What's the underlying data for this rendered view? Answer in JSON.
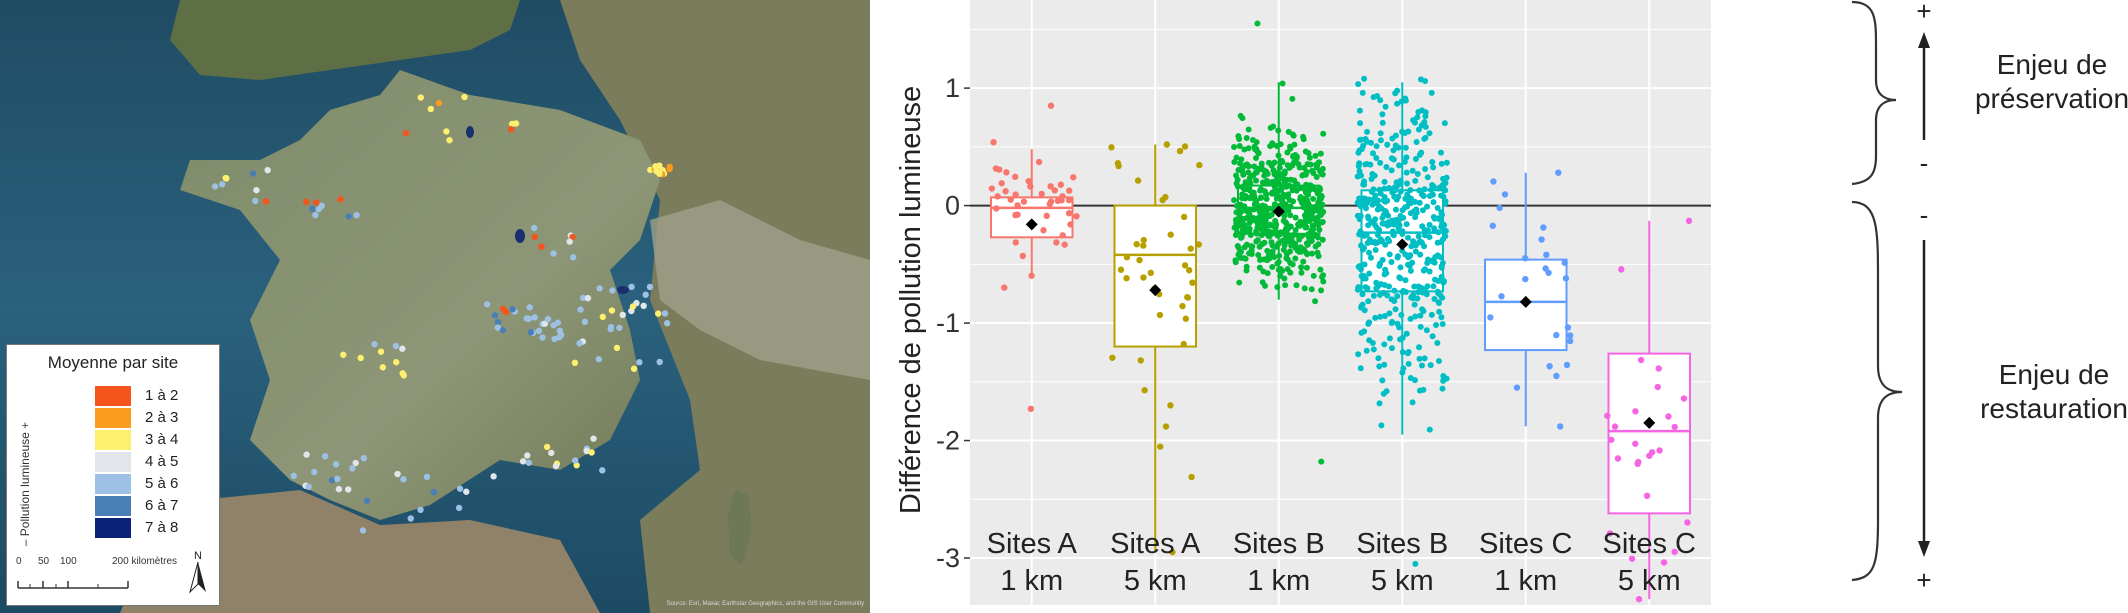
{
  "map": {
    "legend_title": "Moyenne par site",
    "legend_axis_label": "– Pollution lumineuse +",
    "legend": [
      {
        "label": "1 à 2",
        "color": "#f5541b"
      },
      {
        "label": "2 à 3",
        "color": "#fb9b20"
      },
      {
        "label": "3 à 4",
        "color": "#fdf06e"
      },
      {
        "label": "4 à 5",
        "color": "#e2e6ea"
      },
      {
        "label": "5 à 6",
        "color": "#9cc1e4"
      },
      {
        "label": "6 à 7",
        "color": "#4a7fb6"
      },
      {
        "label": "7 à 8",
        "color": "#0b2278"
      }
    ],
    "scale_ticks": [
      "0",
      "50",
      "100",
      "200 kilomètres"
    ],
    "north_label": "N",
    "attribution": "Source: Esri, Maxar, Earthstar Geographics, and the GIS User Community"
  },
  "chart_data": {
    "type": "boxplot",
    "ylabel": "Différence de pollution lumineuse",
    "ylim": [
      -3.4,
      1.75
    ],
    "yticks": [
      1,
      0,
      -1,
      -2,
      -3
    ],
    "reference_line": 0,
    "categories": [
      {
        "line1": "Sites A",
        "line2": "1 km",
        "color": "#f8766d",
        "q1": -0.27,
        "median": -0.02,
        "q3": 0.07,
        "whisker_low": -0.62,
        "whisker_high": 0.48,
        "mean": -0.16,
        "n_points": 45,
        "point_min": -1.73,
        "point_max": 0.85
      },
      {
        "line1": "Sites A",
        "line2": "5 km",
        "color": "#b79f00",
        "q1": -1.2,
        "median": -0.42,
        "q3": 0.0,
        "whisker_low": -2.95,
        "whisker_high": 0.52,
        "mean": -0.72,
        "n_points": 42,
        "point_min": -2.95,
        "point_max": 0.52
      },
      {
        "line1": "Sites B",
        "line2": "1 km",
        "color": "#00ba38",
        "q1": -0.24,
        "median": -0.02,
        "q3": 0.17,
        "whisker_low": -0.8,
        "whisker_high": 1.05,
        "mean": -0.05,
        "n_points": 540,
        "point_min": -2.18,
        "point_max": 1.55
      },
      {
        "line1": "Sites B",
        "line2": "5 km",
        "color": "#00bfc4",
        "q1": -0.73,
        "median": -0.23,
        "q3": 0.13,
        "whisker_low": -1.95,
        "whisker_high": 1.05,
        "mean": -0.33,
        "n_points": 470,
        "point_min": -3.05,
        "point_max": 1.08
      },
      {
        "line1": "Sites C",
        "line2": "1 km",
        "color": "#619cff",
        "q1": -1.23,
        "median": -0.82,
        "q3": -0.46,
        "whisker_low": -1.88,
        "whisker_high": 0.28,
        "mean": -0.82,
        "n_points": 25,
        "point_min": -1.88,
        "point_max": 0.28
      },
      {
        "line1": "Sites C",
        "line2": "5 km",
        "color": "#f564e3",
        "q1": -2.62,
        "median": -1.92,
        "q3": -1.26,
        "whisker_low": -3.35,
        "whisker_high": -0.13,
        "mean": -1.85,
        "n_points": 26,
        "point_min": -3.35,
        "point_max": -0.13
      }
    ]
  },
  "annotations": {
    "top_label_line1": "Enjeu de",
    "top_label_line2": "préservation",
    "bottom_label_line1": "Enjeu de",
    "bottom_label_line2": "restauration",
    "signs": {
      "top_plus": "+",
      "top_minus": "-",
      "bottom_minus": "-",
      "bottom_plus": "+"
    }
  }
}
